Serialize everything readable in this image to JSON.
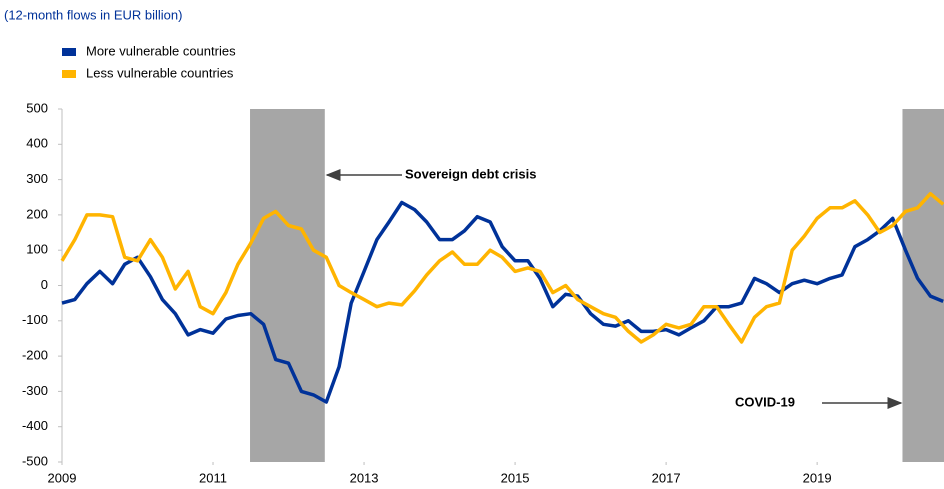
{
  "chart_data": {
    "type": "line",
    "subtitle": "(12-month flows in EUR billion)",
    "x": [
      2009,
      2009.17,
      2009.33,
      2009.5,
      2009.67,
      2009.83,
      2010,
      2010.17,
      2010.33,
      2010.5,
      2010.67,
      2010.83,
      2011,
      2011.17,
      2011.33,
      2011.5,
      2011.67,
      2011.83,
      2012,
      2012.17,
      2012.33,
      2012.5,
      2012.67,
      2012.83,
      2013,
      2013.17,
      2013.33,
      2013.5,
      2013.67,
      2013.83,
      2014,
      2014.17,
      2014.33,
      2014.5,
      2014.67,
      2014.83,
      2015,
      2015.17,
      2015.33,
      2015.5,
      2015.67,
      2015.83,
      2016,
      2016.17,
      2016.33,
      2016.5,
      2016.67,
      2016.83,
      2017,
      2017.17,
      2017.33,
      2017.5,
      2017.67,
      2017.83,
      2018,
      2018.17,
      2018.33,
      2018.5,
      2018.67,
      2018.83,
      2019,
      2019.17,
      2019.33,
      2019.5,
      2019.67,
      2019.83,
      2020,
      2020.17,
      2020.33,
      2020.5,
      2020.67
    ],
    "series": [
      {
        "name": "More vulnerable countries",
        "color": "#003299",
        "values": [
          -50,
          -40,
          5,
          40,
          5,
          60,
          80,
          25,
          -40,
          -80,
          -140,
          -125,
          -135,
          -95,
          -85,
          -80,
          -110,
          -210,
          -220,
          -300,
          -310,
          -330,
          -230,
          -50,
          40,
          130,
          180,
          235,
          215,
          180,
          130,
          130,
          155,
          195,
          180,
          110,
          70,
          70,
          20,
          -60,
          -25,
          -30,
          -80,
          -110,
          -115,
          -100,
          -130,
          -130,
          -125,
          -140,
          -120,
          -100,
          -60,
          -60,
          -50,
          20,
          5,
          -20,
          5,
          15,
          5,
          20,
          30,
          110,
          130,
          155,
          190,
          100,
          20,
          -30,
          -45
        ]
      },
      {
        "name": "Less vulnerable countries",
        "color": "#ffb400",
        "values": [
          70,
          130,
          200,
          200,
          195,
          80,
          70,
          130,
          80,
          -10,
          40,
          -60,
          -80,
          -20,
          60,
          120,
          190,
          210,
          170,
          160,
          100,
          80,
          0,
          -20,
          -40,
          -60,
          -50,
          -55,
          -15,
          30,
          70,
          95,
          60,
          60,
          100,
          80,
          40,
          50,
          40,
          -20,
          0,
          -40,
          -60,
          -80,
          -90,
          -130,
          -160,
          -140,
          -110,
          -120,
          -110,
          -60,
          -60,
          -110,
          -160,
          -90,
          -60,
          -50,
          100,
          140,
          190,
          220,
          220,
          240,
          200,
          150,
          170,
          210,
          220,
          260,
          230
        ]
      }
    ],
    "xlim": [
      2009,
      2020.68
    ],
    "xticks": [
      2009,
      2011,
      2013,
      2015,
      2017,
      2019
    ],
    "ylim": [
      -500,
      500
    ],
    "yticks": [
      -500,
      -400,
      -300,
      -200,
      -100,
      0,
      100,
      200,
      300,
      400,
      500
    ],
    "shaded_periods": [
      {
        "start": 2011.49,
        "end": 2012.48
      },
      {
        "start": 2020.13,
        "end": 2020.68
      }
    ],
    "shade_color": "#a6a6a6",
    "annotations": [
      "Sovereign debt crisis",
      "COVID-19"
    ],
    "legend": "top-left"
  }
}
